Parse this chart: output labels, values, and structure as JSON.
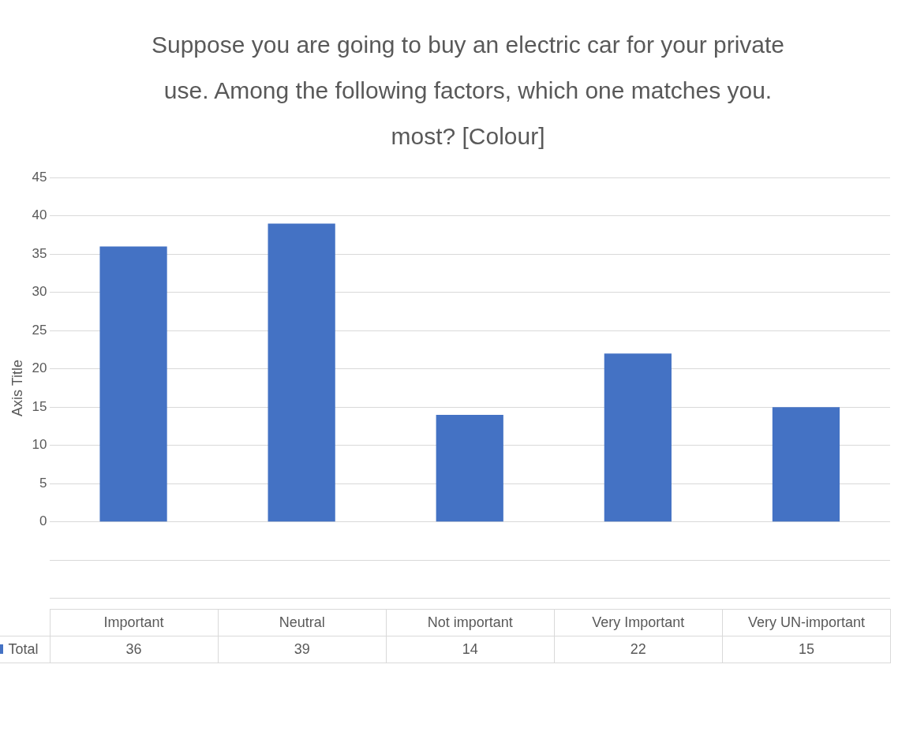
{
  "chart_data": {
    "type": "bar",
    "title": "Suppose you are going to buy an electric car for your private use. Among the following factors, which one matches you. most? [Colour]",
    "ylabel": "Axis Title",
    "categories": [
      "Important",
      "Neutral",
      "Not important",
      "Very Important",
      "Very UN-important"
    ],
    "series": [
      {
        "name": "Total",
        "color": "#4472c4",
        "values": [
          36,
          39,
          14,
          22,
          15
        ]
      }
    ],
    "ylim": [
      -10,
      45
    ],
    "yticks": [
      {
        "value": -10,
        "label": null
      },
      {
        "value": -5,
        "label": null
      },
      0,
      5,
      10,
      15,
      20,
      25,
      30,
      35,
      40,
      45
    ],
    "grid": "y",
    "data_labels": true
  }
}
